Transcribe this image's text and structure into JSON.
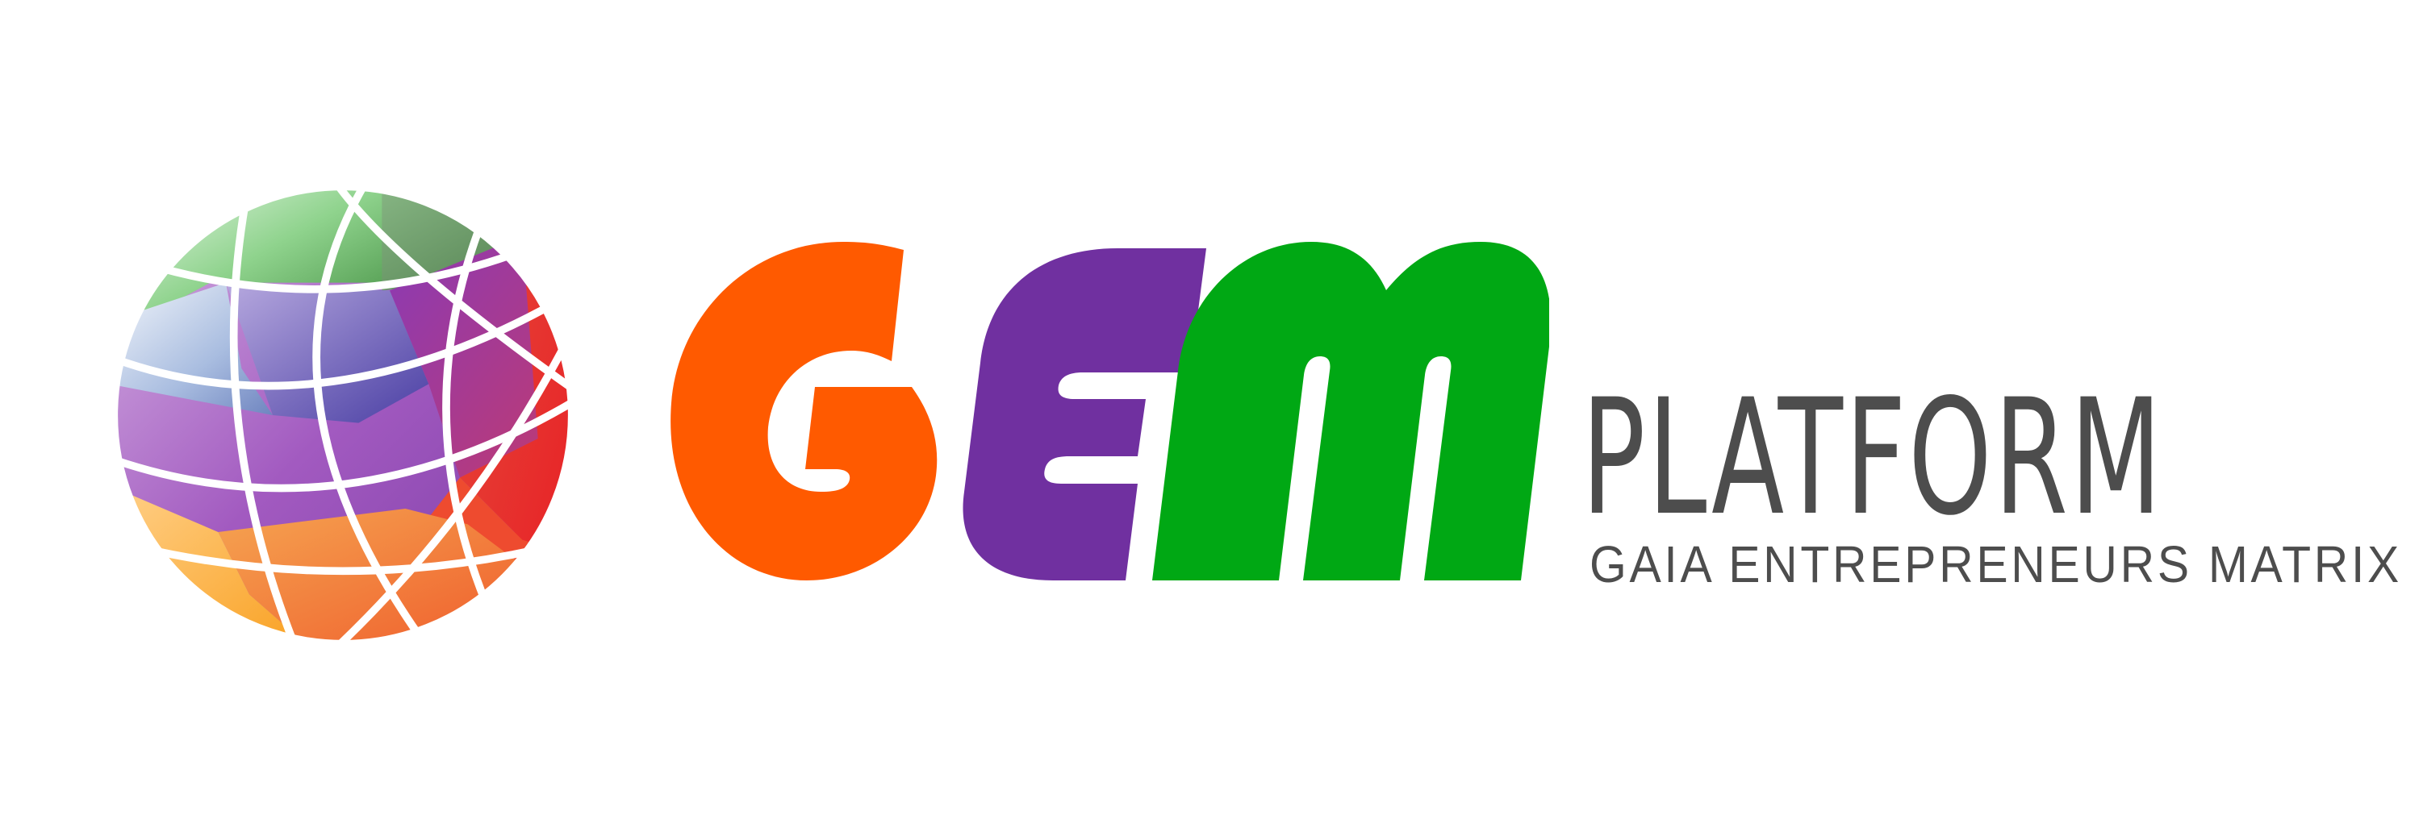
{
  "logo": {
    "mark_icon": "segmented-globe-icon",
    "wordmark": {
      "letters": [
        {
          "char": "G",
          "color": "#FF5A00"
        },
        {
          "char": "E",
          "color": "#7030A0"
        },
        {
          "char": "M",
          "color": "#00A814"
        }
      ]
    },
    "platform": "PLATFORM",
    "tagline": "GAIA ENTREPRENEURS MATRIX",
    "text_color": "#4D4D4D"
  }
}
